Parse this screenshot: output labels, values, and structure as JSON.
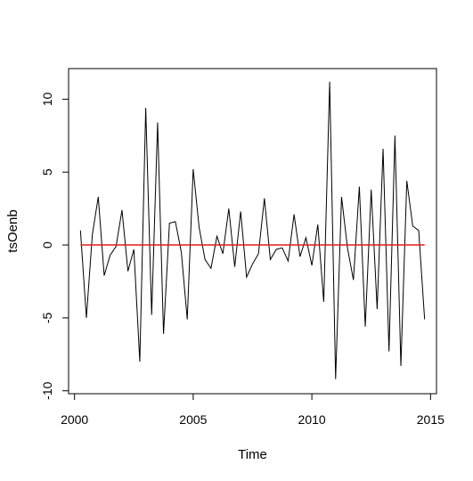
{
  "chart_data": {
    "type": "line",
    "xlabel": "Time",
    "ylabel": "tsOenb",
    "xlim": [
      1999.75,
      2015.25
    ],
    "ylim": [
      -10.2,
      12.1
    ],
    "x_ticks": [
      2000,
      2005,
      2010,
      2015
    ],
    "x_tick_labels": [
      "2000",
      "2005",
      "2010",
      "2015"
    ],
    "y_ticks": [
      -10,
      -5,
      0,
      5,
      10
    ],
    "y_tick_labels": [
      "-10",
      "-5",
      "0",
      "5",
      "10"
    ],
    "grid": false,
    "series": [
      {
        "color": "#000000",
        "x": [
          2000.25,
          2000.5,
          2000.75,
          2001.0,
          2001.25,
          2001.5,
          2001.75,
          2002.0,
          2002.25,
          2002.5,
          2002.75,
          2003.0,
          2003.25,
          2003.5,
          2003.75,
          2004.0,
          2004.25,
          2004.5,
          2004.75,
          2005.0,
          2005.25,
          2005.5,
          2005.75,
          2006.0,
          2006.25,
          2006.5,
          2006.75,
          2007.0,
          2007.25,
          2007.5,
          2007.75,
          2008.0,
          2008.25,
          2008.5,
          2008.75,
          2009.0,
          2009.25,
          2009.5,
          2009.75,
          2010.0,
          2010.25,
          2010.5,
          2010.75,
          2011.0,
          2011.25,
          2011.5,
          2011.75,
          2012.0,
          2012.25,
          2012.5,
          2012.75,
          2013.0,
          2013.25,
          2013.5,
          2013.75,
          2014.0,
          2014.25,
          2014.5,
          2014.75
        ],
        "values": [
          1.0,
          -5.0,
          0.7,
          3.3,
          -2.1,
          -0.7,
          -0.1,
          2.4,
          -1.8,
          -0.3,
          -8.0,
          9.4,
          -4.8,
          8.4,
          -6.1,
          1.5,
          1.6,
          -0.5,
          -5.1,
          5.2,
          1.2,
          -1.0,
          -1.6,
          0.6,
          -0.6,
          2.5,
          -1.5,
          2.3,
          -2.2,
          -1.3,
          -0.6,
          3.2,
          -1.0,
          -0.3,
          -0.2,
          -1.1,
          2.1,
          -0.8,
          0.5,
          -1.4,
          1.4,
          -3.9,
          11.2,
          -9.2,
          3.3,
          -0.2,
          -2.4,
          4.0,
          -5.6,
          3.8,
          -4.4,
          6.6,
          -7.3,
          7.5,
          -8.3,
          4.4,
          1.3,
          1.0,
          -5.1
        ]
      },
      {
        "color": "#e41a1c",
        "x": [
          2000.25,
          2014.75
        ],
        "values": [
          0,
          0
        ]
      }
    ]
  }
}
